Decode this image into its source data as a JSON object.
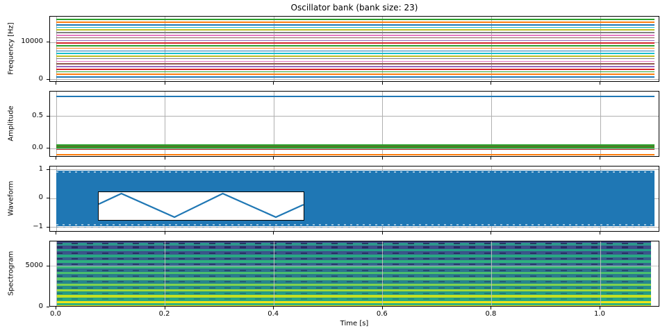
{
  "figure": {
    "title": "Oscillator bank (bank size: 23)",
    "xlabel": "Time [s]",
    "bank_size": 23,
    "background": "#ffffff",
    "grid_color": "#b0b0b0",
    "spine_color": "#000000"
  },
  "palette": [
    "#1f77b4",
    "#ff7f0e",
    "#2ca02c",
    "#d62728",
    "#9467bd",
    "#8c564b",
    "#e377c2",
    "#7f7f7f",
    "#bcbd22",
    "#17becf"
  ],
  "xaxis": {
    "xlim": [
      -0.0115,
      1.11
    ],
    "tick_values": [
      0.0,
      0.2,
      0.4,
      0.6,
      0.8,
      1.0
    ],
    "tick_labels": [
      "0.0",
      "0.2",
      "0.4",
      "0.6",
      "0.8",
      "1.0"
    ],
    "data_t_end": 1.1
  },
  "chart_data": [
    {
      "type": "line",
      "title": "Oscillator bank (bank size: 23)",
      "ylabel": "Frequency [Hz]",
      "ytick_values": [
        0,
        10000
      ],
      "ytick_labels": [
        "0",
        "10000"
      ],
      "ylim": [
        -800,
        16900
      ],
      "t_extent": [
        0,
        1.1
      ],
      "description": "23 constant-frequency oscillator tracks, evenly spaced",
      "frequencies_hz": [
        700,
        1400,
        2100,
        2800,
        3500,
        4200,
        4900,
        5600,
        6300,
        7000,
        7700,
        8400,
        9100,
        9800,
        10500,
        11200,
        11900,
        12600,
        13300,
        14000,
        14700,
        15400,
        16100
      ],
      "line_width": 1.7
    },
    {
      "type": "line",
      "ylabel": "Amplitude",
      "ytick_values": [
        0.0,
        0.5
      ],
      "ytick_labels": [
        "0.0",
        "0.5"
      ],
      "ylim": [
        -0.135,
        0.887
      ],
      "t_extent": [
        0,
        1.1
      ],
      "description": "constant amplitude envelopes: fundamental ~0.81, cluster of small partial amplitudes near 0, one at -0.09",
      "lines": [
        {
          "value": 0.81,
          "color": "#1f77b4",
          "lw": 1.8
        },
        {
          "value": -0.09,
          "color": "#ff7f0e",
          "lw": 1.8
        },
        {
          "value": 0.055,
          "color": "#2ca02c",
          "lw": 2.4
        },
        {
          "value": 0.034,
          "color": "#55782a",
          "lw": 1.6
        },
        {
          "value": 0.014,
          "color": "#2ca02c",
          "lw": 2.4
        },
        {
          "value": -0.009,
          "color": "#a93226",
          "lw": 1.5
        }
      ]
    },
    {
      "type": "area",
      "ylabel": "Waveform",
      "ytick_values": [
        -1,
        0,
        1
      ],
      "ytick_labels": [
        "−1",
        "0",
        "1"
      ],
      "ylim": [
        -1.18,
        1.11
      ],
      "t_extent": [
        0,
        1.1
      ],
      "description": "dense triangle-wave audio signal filling ±0.96, with zoom inset",
      "envelope": [
        -0.96,
        0.96
      ],
      "fill_color": "#1f77b4",
      "inset": {
        "bounds_axes_fraction": {
          "left": 0.0786,
          "top": 0.379,
          "width": 0.338,
          "height": 0.442
        },
        "polyline_norm": [
          [
            0,
            0.43
          ],
          [
            0.111,
            0.05
          ],
          [
            0.37,
            0.9
          ],
          [
            0.606,
            0.05
          ],
          [
            0.865,
            0.9
          ],
          [
            1,
            0.45
          ]
        ],
        "line_color": "#1f77b4"
      }
    },
    {
      "type": "heatmap",
      "ylabel": "Spectrogram",
      "ytick_values": [
        0,
        5000
      ],
      "ytick_labels": [
        "0",
        "5000"
      ],
      "ylim": [
        0,
        8000
      ],
      "t_extent": [
        0,
        1.093
      ],
      "colormap": "viridis",
      "description": "harmonic bands every ~700 Hz, brightest at low frequency, dark beating dashes between bands",
      "bg_gradient": [
        "#414487 0%",
        "#395a8c 22%",
        "#2e6f8e 42%",
        "#27868e 62%",
        "#22a084 82%",
        "#2cb17d 94%",
        "#35b779 100%"
      ],
      "bands": [
        {
          "freq": 150,
          "color": "#fde725",
          "h": 3.0
        },
        {
          "freq": 650,
          "color": "#ece51b",
          "h": 3.5
        },
        {
          "freq": 1350,
          "color": "#c2df23",
          "h": 3.5
        },
        {
          "freq": 2050,
          "color": "#9fda3a",
          "h": 3.5
        },
        {
          "freq": 2750,
          "color": "#7fd34e",
          "h": 3.5
        },
        {
          "freq": 3450,
          "color": "#63cb5f",
          "h": 3.5
        },
        {
          "freq": 4150,
          "color": "#4ac16d",
          "h": 3.5
        },
        {
          "freq": 4850,
          "color": "#3bb878",
          "h": 3.5
        },
        {
          "freq": 5550,
          "color": "#2eb07f",
          "h": 3.5
        },
        {
          "freq": 6250,
          "color": "#28a884",
          "h": 3.5
        },
        {
          "freq": 6950,
          "color": "#26a086",
          "h": 3.5
        },
        {
          "freq": 7650,
          "color": "#2d968c",
          "h": 3.5
        }
      ],
      "dash_rows": [
        {
          "freq": 1000,
          "opacity": 0.22
        },
        {
          "freq": 1700,
          "opacity": 0.28
        },
        {
          "freq": 2400,
          "opacity": 0.33
        },
        {
          "freq": 3100,
          "opacity": 0.38
        },
        {
          "freq": 3800,
          "opacity": 0.44
        },
        {
          "freq": 4500,
          "opacity": 0.5
        },
        {
          "freq": 5200,
          "opacity": 0.55
        },
        {
          "freq": 5900,
          "opacity": 0.6
        },
        {
          "freq": 6600,
          "opacity": 0.65
        },
        {
          "freq": 7300,
          "opacity": 0.7
        },
        {
          "freq": 7750,
          "opacity": 0.72
        }
      ],
      "dash_color": "#1f1a50"
    }
  ]
}
